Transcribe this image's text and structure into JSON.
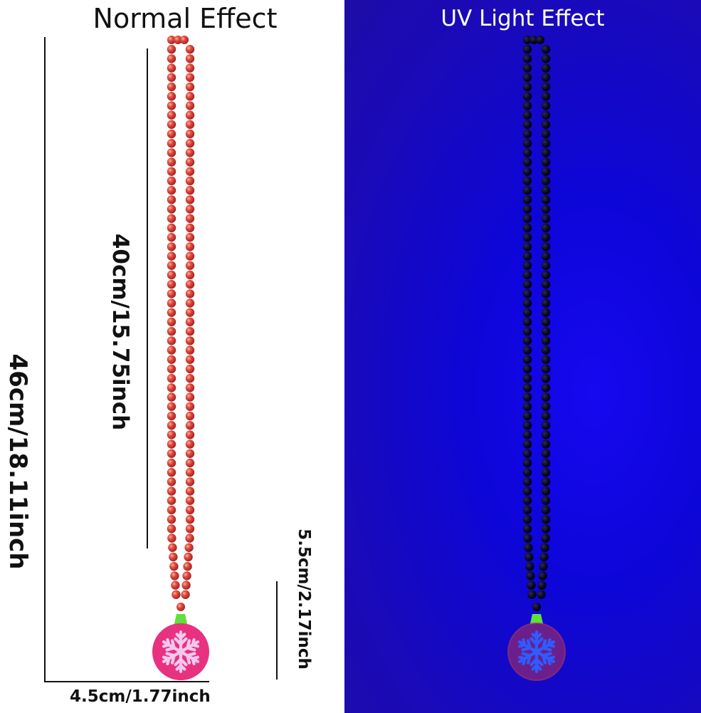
{
  "titles": {
    "normal": "Normal Effect",
    "uv": "UV Light Effect"
  },
  "dimensions": {
    "total_length": "46cm/18.11inch",
    "chain_length": "40cm/15.75inch",
    "pendant_height": "5.5cm/2.17inch",
    "pendant_width": "4.5cm/1.77inch"
  },
  "colors": {
    "uv_background": "#1008e6",
    "bead_normal": "#d9403a",
    "bead_uv": "#0a0a24",
    "pendant_normal": "#e8317f",
    "pendant_uv": "#6a1f8a",
    "snowflake_normal": "#f4c8ee",
    "snowflake_uv": "#2f5bff",
    "cap": "#5fe03c"
  },
  "icons": {
    "left_product": "bead-necklace-snowflake-pendant",
    "right_product": "bead-necklace-snowflake-pendant-uv"
  }
}
